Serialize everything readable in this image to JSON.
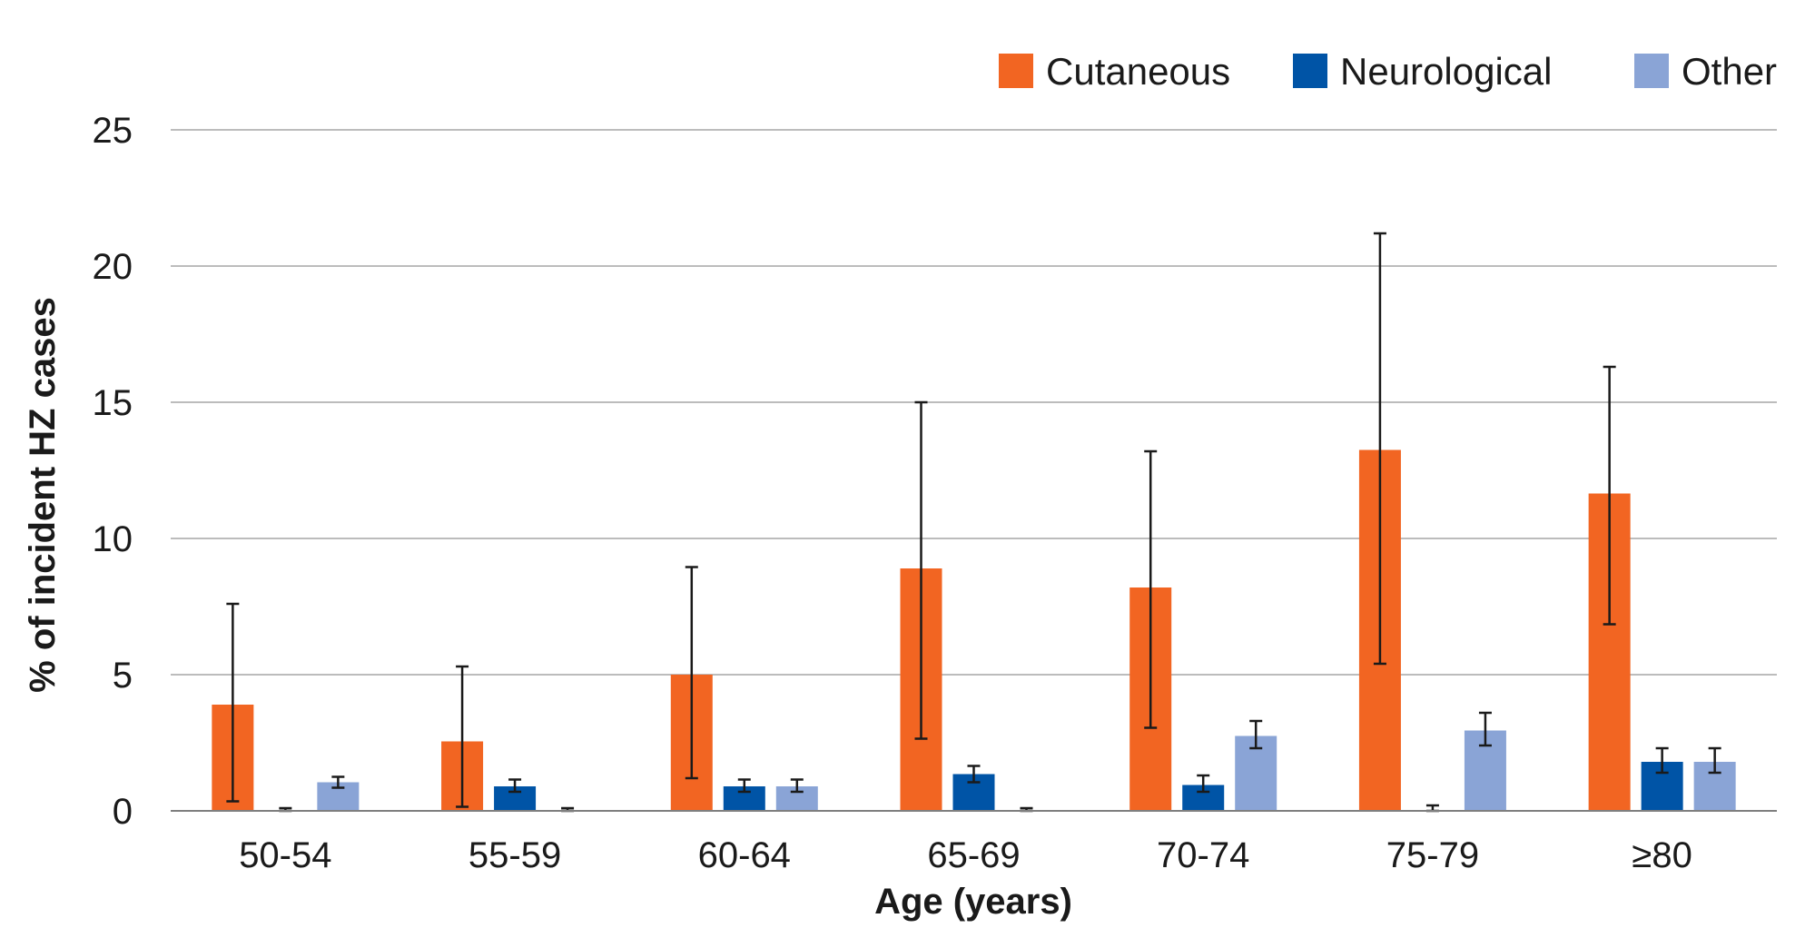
{
  "chart_data": {
    "type": "bar",
    "title": "",
    "xlabel": "Age (years)",
    "ylabel": "% of incident HZ cases",
    "ylim": [
      0,
      25
    ],
    "yticks": [
      0,
      5,
      10,
      15,
      20,
      25
    ],
    "grid": true,
    "legend_position": "top-right",
    "categories": [
      "50-54",
      "55-59",
      "60-64",
      "65-69",
      "70-74",
      "75-79",
      "≥80"
    ],
    "series": [
      {
        "name": "Cutaneous",
        "color": "#f26522",
        "values": [
          3.9,
          2.55,
          5.0,
          8.9,
          8.2,
          13.25,
          11.65
        ],
        "error_low": [
          0.35,
          0.15,
          1.2,
          2.65,
          3.05,
          5.4,
          6.85
        ],
        "error_high": [
          7.6,
          5.3,
          8.95,
          15.0,
          13.2,
          21.2,
          16.3
        ]
      },
      {
        "name": "Neurological",
        "color": "#0054a6",
        "values": [
          0,
          0.9,
          0.9,
          1.35,
          0.95,
          0,
          1.8
        ],
        "error_low": [
          0,
          0.7,
          0.7,
          1.05,
          0.7,
          0,
          1.4
        ],
        "error_high": [
          0.1,
          1.15,
          1.15,
          1.65,
          1.3,
          0.2,
          2.3
        ]
      },
      {
        "name": "Other",
        "color": "#8aa4d6",
        "values": [
          1.05,
          0,
          0.9,
          0,
          2.75,
          2.95,
          1.8
        ],
        "error_low": [
          0.85,
          0,
          0.7,
          0,
          2.3,
          2.4,
          1.4
        ],
        "error_high": [
          1.25,
          0.1,
          1.15,
          0.1,
          3.3,
          3.6,
          2.3
        ]
      }
    ]
  }
}
